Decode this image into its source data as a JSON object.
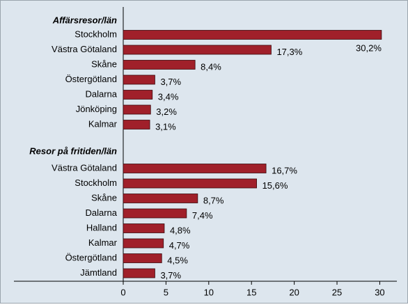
{
  "chart_data": {
    "type": "bar",
    "orientation": "horizontal",
    "color": "#a0202a",
    "groups": [
      {
        "name": "Affärsresor/län",
        "categories": [
          "Stockholm",
          "Västra Götaland",
          "Skåne",
          "Östergötland",
          "Dalarna",
          "Jönköping",
          "Kalmar"
        ],
        "values": [
          30.2,
          17.3,
          8.4,
          3.7,
          3.4,
          3.2,
          3.1
        ],
        "value_labels": [
          "30,2%",
          "17,3%",
          "8,4%",
          "3,7%",
          "3,4%",
          "3,2%",
          "3,1%"
        ]
      },
      {
        "name": "Resor på fritiden/län",
        "categories": [
          "Västra Götaland",
          "Stockholm",
          "Skåne",
          "Dalarna",
          "Halland",
          "Kalmar",
          "Östergötland",
          "Jämtland"
        ],
        "values": [
          16.7,
          15.6,
          8.7,
          7.4,
          4.8,
          4.7,
          4.5,
          3.7
        ],
        "value_labels": [
          "16,7%",
          "15,6%",
          "8,7%",
          "7,4%",
          "4,8%",
          "4,7%",
          "4,5%",
          "3,7%"
        ]
      }
    ],
    "xlim": [
      0,
      32
    ],
    "xticks": [
      0,
      5,
      10,
      15,
      20,
      25,
      30
    ]
  }
}
